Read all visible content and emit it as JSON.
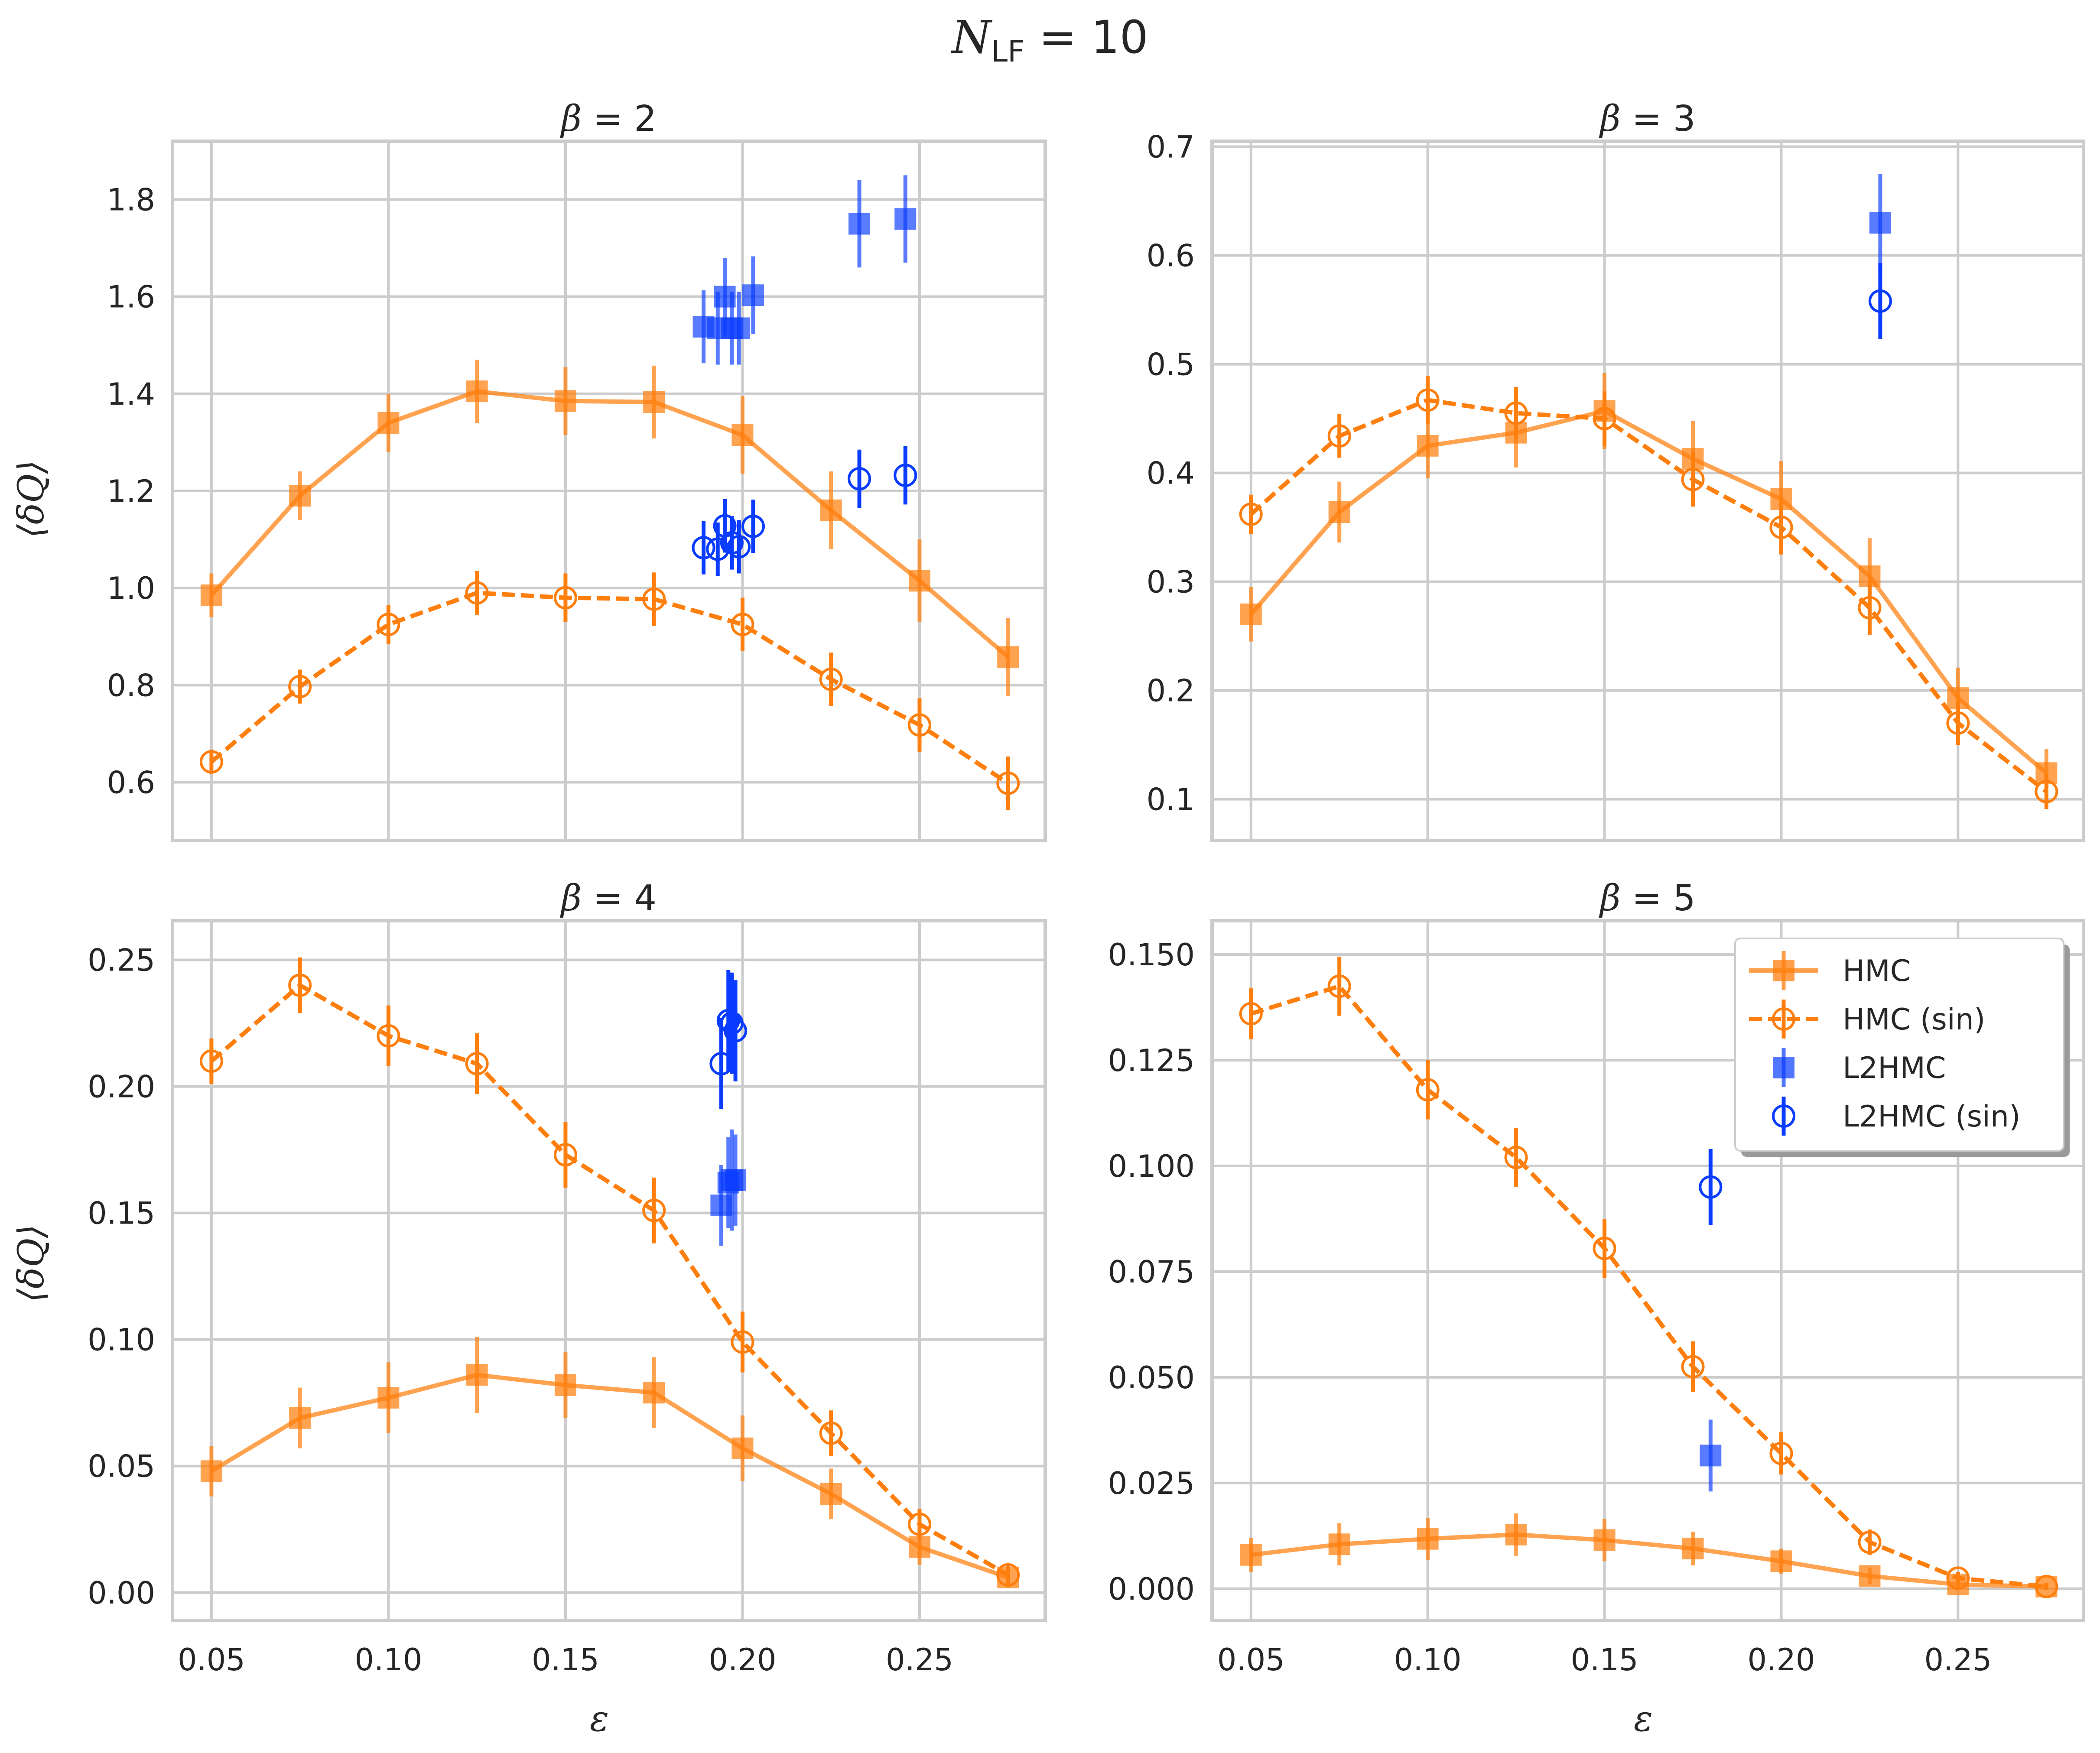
{
  "title_main": "N",
  "title_sub": "LF",
  "title_rest": " = 10",
  "xlabel": "ε",
  "ylabel": "⟨δQ⟩",
  "colors": {
    "hmc": "#ff7f0e",
    "l2hmc": "#0a3cff",
    "grid": "#cccccc",
    "frame": "#cccccc"
  },
  "legend": {
    "placement": "upper-right of bottom-right panel",
    "items": [
      {
        "key": "hmc",
        "label": "HMC"
      },
      {
        "key": "hmc_sin",
        "label": "HMC (sin)"
      },
      {
        "key": "l2hmc",
        "label": "L2HMC"
      },
      {
        "key": "l2hmc_sin",
        "label": "L2HMC (sin)"
      }
    ]
  },
  "chart_data": [
    {
      "type": "line",
      "title_sym": "β",
      "title_val": " = 2",
      "xlim": [
        0.039,
        0.2855
      ],
      "ylim": [
        0.48,
        1.92
      ],
      "xticks": [
        0.05,
        0.1,
        0.15,
        0.2,
        0.25
      ],
      "xtick_labels": [
        "0.05",
        "0.10",
        "0.15",
        "0.20",
        "0.25"
      ],
      "yticks": [
        0.6,
        0.8,
        1.0,
        1.2,
        1.4,
        1.6,
        1.8
      ],
      "ytick_labels": [
        "0.6",
        "0.8",
        "1.0",
        "1.2",
        "1.4",
        "1.6",
        "1.8"
      ],
      "x": [
        0.05,
        0.075,
        0.1,
        0.125,
        0.15,
        0.175,
        0.2,
        0.225,
        0.25,
        0.275
      ],
      "hmc": {
        "y": [
          0.985,
          1.19,
          1.34,
          1.405,
          1.385,
          1.383,
          1.315,
          1.16,
          1.015,
          0.858
        ],
        "err": [
          0.045,
          0.05,
          0.06,
          0.065,
          0.07,
          0.075,
          0.08,
          0.08,
          0.085,
          0.08
        ]
      },
      "hmc_sin": {
        "y": [
          0.642,
          0.797,
          0.925,
          0.99,
          0.98,
          0.977,
          0.925,
          0.812,
          0.718,
          0.598
        ],
        "err": [
          0.025,
          0.035,
          0.04,
          0.045,
          0.05,
          0.055,
          0.055,
          0.055,
          0.055,
          0.055
        ]
      },
      "l2hmc": {
        "x": [
          0.189,
          0.193,
          0.195,
          0.197,
          0.199,
          0.203,
          0.233,
          0.246
        ],
        "y": [
          1.538,
          1.535,
          1.6,
          1.535,
          1.535,
          1.603,
          1.75,
          1.76
        ],
        "err": [
          0.075,
          0.075,
          0.08,
          0.075,
          0.075,
          0.08,
          0.09,
          0.09
        ]
      },
      "l2hmc_sin": {
        "x": [
          0.189,
          0.193,
          0.195,
          0.197,
          0.199,
          0.203,
          0.233,
          0.246
        ],
        "y": [
          1.083,
          1.08,
          1.128,
          1.093,
          1.085,
          1.127,
          1.225,
          1.232
        ],
        "err": [
          0.055,
          0.055,
          0.055,
          0.055,
          0.055,
          0.055,
          0.06,
          0.06
        ]
      }
    },
    {
      "type": "line",
      "title_sym": "β",
      "title_val": " = 3",
      "xlim": [
        0.039,
        0.2855
      ],
      "ylim": [
        0.062,
        0.705
      ],
      "xticks": [
        0.05,
        0.1,
        0.15,
        0.2,
        0.25
      ],
      "xtick_labels": [
        "0.05",
        "0.10",
        "0.15",
        "0.20",
        "0.25"
      ],
      "yticks": [
        0.1,
        0.2,
        0.3,
        0.4,
        0.5,
        0.6,
        0.7
      ],
      "ytick_labels": [
        "0.1",
        "0.2",
        "0.3",
        "0.4",
        "0.5",
        "0.6",
        "0.7"
      ],
      "x": [
        0.05,
        0.075,
        0.1,
        0.125,
        0.15,
        0.175,
        0.2,
        0.225,
        0.25,
        0.275
      ],
      "hmc": {
        "y": [
          0.27,
          0.364,
          0.425,
          0.437,
          0.457,
          0.413,
          0.376,
          0.305,
          0.193,
          0.124
        ],
        "err": [
          0.025,
          0.028,
          0.03,
          0.032,
          0.035,
          0.035,
          0.035,
          0.035,
          0.028,
          0.022
        ]
      },
      "hmc_sin": {
        "y": [
          0.362,
          0.434,
          0.467,
          0.455,
          0.45,
          0.394,
          0.35,
          0.276,
          0.17,
          0.107
        ],
        "err": [
          0.018,
          0.02,
          0.022,
          0.024,
          0.025,
          0.025,
          0.025,
          0.025,
          0.02,
          0.016
        ]
      },
      "l2hmc": {
        "x": [
          0.228
        ],
        "y": [
          0.63
        ],
        "err": [
          0.045
        ]
      },
      "l2hmc_sin": {
        "x": [
          0.228
        ],
        "y": [
          0.558
        ],
        "err": [
          0.035
        ]
      }
    },
    {
      "type": "line",
      "title_sym": "β",
      "title_val": " = 4",
      "xlim": [
        0.039,
        0.2855
      ],
      "ylim": [
        -0.011,
        0.2655
      ],
      "xticks": [
        0.05,
        0.1,
        0.15,
        0.2,
        0.25
      ],
      "xtick_labels": [
        "0.05",
        "0.10",
        "0.15",
        "0.20",
        "0.25"
      ],
      "yticks": [
        0.0,
        0.05,
        0.1,
        0.15,
        0.2,
        0.25
      ],
      "ytick_labels": [
        "0.00",
        "0.05",
        "0.10",
        "0.15",
        "0.20",
        "0.25"
      ],
      "x": [
        0.05,
        0.075,
        0.1,
        0.125,
        0.15,
        0.175,
        0.2,
        0.225,
        0.25,
        0.275
      ],
      "hmc": {
        "y": [
          0.048,
          0.069,
          0.077,
          0.086,
          0.082,
          0.079,
          0.057,
          0.039,
          0.018,
          0.006
        ],
        "err": [
          0.01,
          0.012,
          0.014,
          0.015,
          0.013,
          0.014,
          0.013,
          0.01,
          0.007,
          0.004
        ]
      },
      "hmc_sin": {
        "y": [
          0.21,
          0.24,
          0.22,
          0.209,
          0.173,
          0.151,
          0.099,
          0.063,
          0.027,
          0.007
        ],
        "err": [
          0.009,
          0.011,
          0.012,
          0.012,
          0.013,
          0.013,
          0.012,
          0.009,
          0.006,
          0.004
        ]
      },
      "l2hmc": {
        "x": [
          0.194,
          0.196,
          0.197,
          0.198
        ],
        "y": [
          0.153,
          0.162,
          0.163,
          0.163
        ],
        "err": [
          0.016,
          0.018,
          0.02,
          0.018
        ]
      },
      "l2hmc_sin": {
        "x": [
          0.194,
          0.196,
          0.197,
          0.198
        ],
        "y": [
          0.209,
          0.226,
          0.225,
          0.222
        ],
        "err": [
          0.018,
          0.02,
          0.02,
          0.02
        ]
      }
    },
    {
      "type": "line",
      "title_sym": "β",
      "title_val": " = 5",
      "xlim": [
        0.039,
        0.2855
      ],
      "ylim": [
        -0.0075,
        0.158
      ],
      "xticks": [
        0.05,
        0.1,
        0.15,
        0.2,
        0.25
      ],
      "xtick_labels": [
        "0.05",
        "0.10",
        "0.15",
        "0.20",
        "0.25"
      ],
      "yticks": [
        0.0,
        0.025,
        0.05,
        0.075,
        0.1,
        0.125,
        0.15
      ],
      "ytick_labels": [
        "0.000",
        "0.025",
        "0.050",
        "0.075",
        "0.100",
        "0.125",
        "0.150"
      ],
      "x": [
        0.05,
        0.075,
        0.1,
        0.125,
        0.15,
        0.175,
        0.2,
        0.225,
        0.25,
        0.275
      ],
      "hmc": {
        "y": [
          0.008,
          0.0105,
          0.0118,
          0.0128,
          0.0115,
          0.0095,
          0.0065,
          0.003,
          0.001,
          0.0005
        ],
        "err": [
          0.004,
          0.005,
          0.005,
          0.005,
          0.005,
          0.004,
          0.003,
          0.002,
          0.001,
          0.0008
        ]
      },
      "hmc_sin": {
        "y": [
          0.136,
          0.1425,
          0.118,
          0.102,
          0.0805,
          0.0525,
          0.032,
          0.011,
          0.0025,
          0.0005
        ],
        "err": [
          0.006,
          0.007,
          0.007,
          0.007,
          0.007,
          0.006,
          0.005,
          0.003,
          0.0015,
          0.0008
        ]
      },
      "l2hmc": {
        "x": [
          0.18
        ],
        "y": [
          0.0315
        ],
        "err": [
          0.0085
        ]
      },
      "l2hmc_sin": {
        "x": [
          0.18
        ],
        "y": [
          0.095
        ],
        "err": [
          0.009
        ]
      }
    }
  ]
}
